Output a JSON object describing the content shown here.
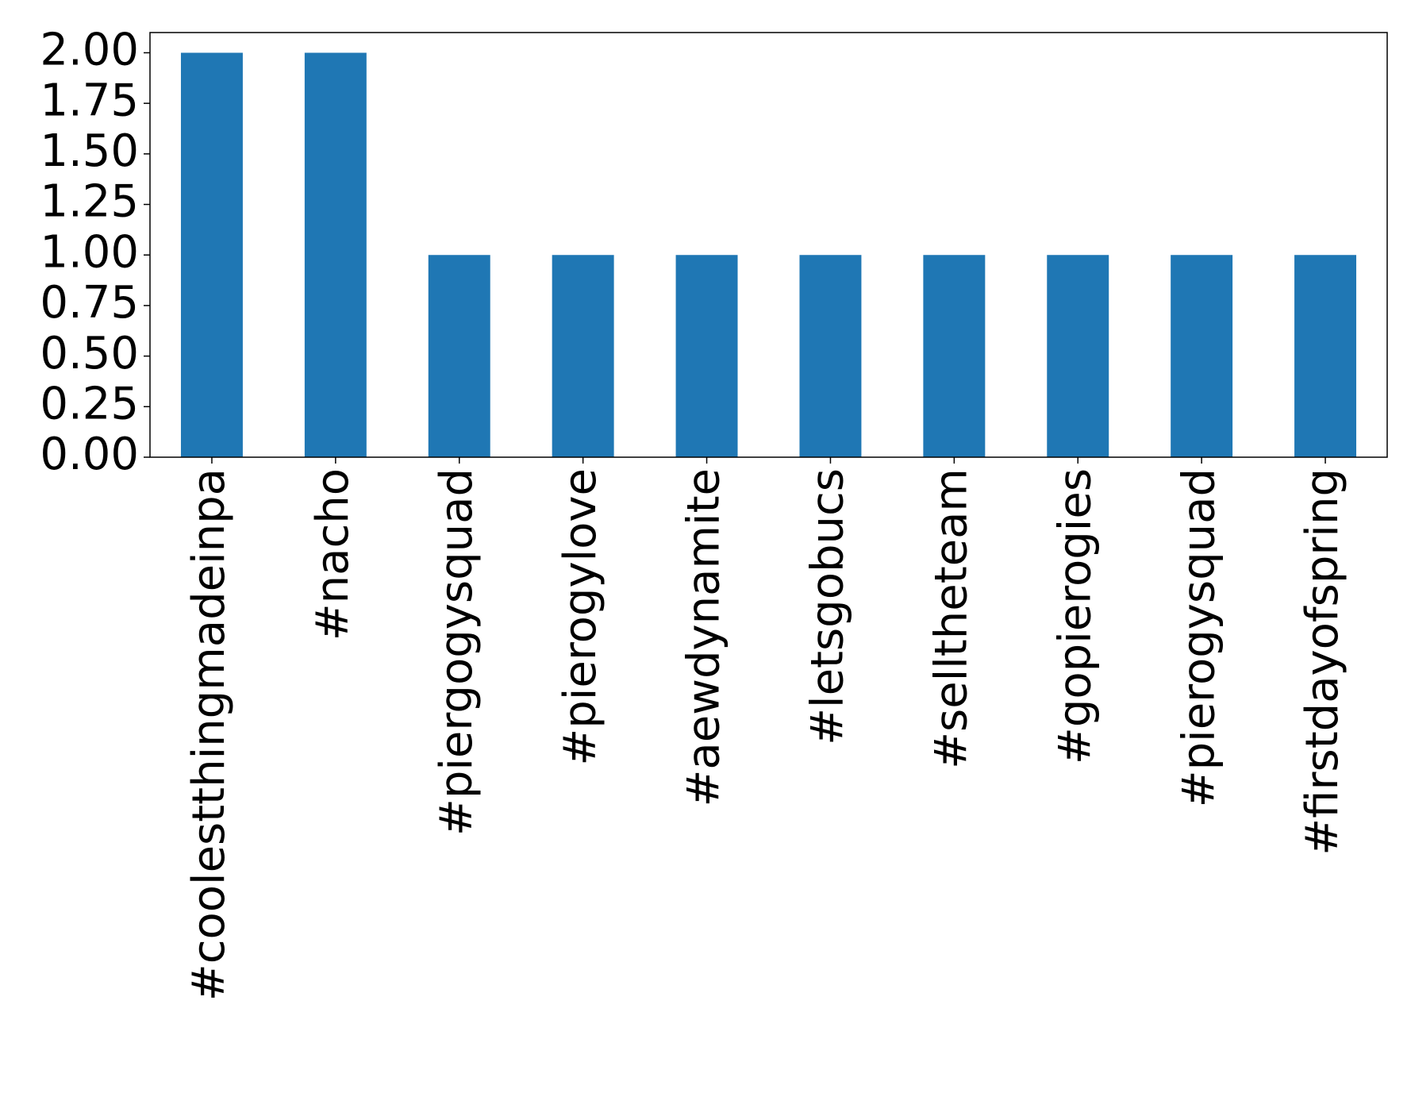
{
  "chart_data": {
    "type": "bar",
    "categories": [
      "#coolestthingmadeinpa",
      "#nacho",
      "#piergogysquad",
      "#pierogylove",
      "#aewdynamite",
      "#letsgobucs",
      "#selltheteam",
      "#gopierogies",
      "#pierogysquad",
      "#firstdayofspring"
    ],
    "values": [
      2,
      2,
      1,
      1,
      1,
      1,
      1,
      1,
      1,
      1
    ],
    "color": "#1f77b4",
    "ylim": [
      0,
      2.1
    ],
    "yticks": [
      {
        "value": 0,
        "label": "0.00"
      },
      {
        "value": 0.25,
        "label": "0.25"
      },
      {
        "value": 0.5,
        "label": "0.50"
      },
      {
        "value": 0.75,
        "label": "0.75"
      },
      {
        "value": 1,
        "label": "1.00"
      },
      {
        "value": 1.25,
        "label": "1.25"
      },
      {
        "value": 1.5,
        "label": "1.50"
      },
      {
        "value": 1.75,
        "label": "1.75"
      },
      {
        "value": 2,
        "label": "2.00"
      }
    ],
    "grid": false
  }
}
